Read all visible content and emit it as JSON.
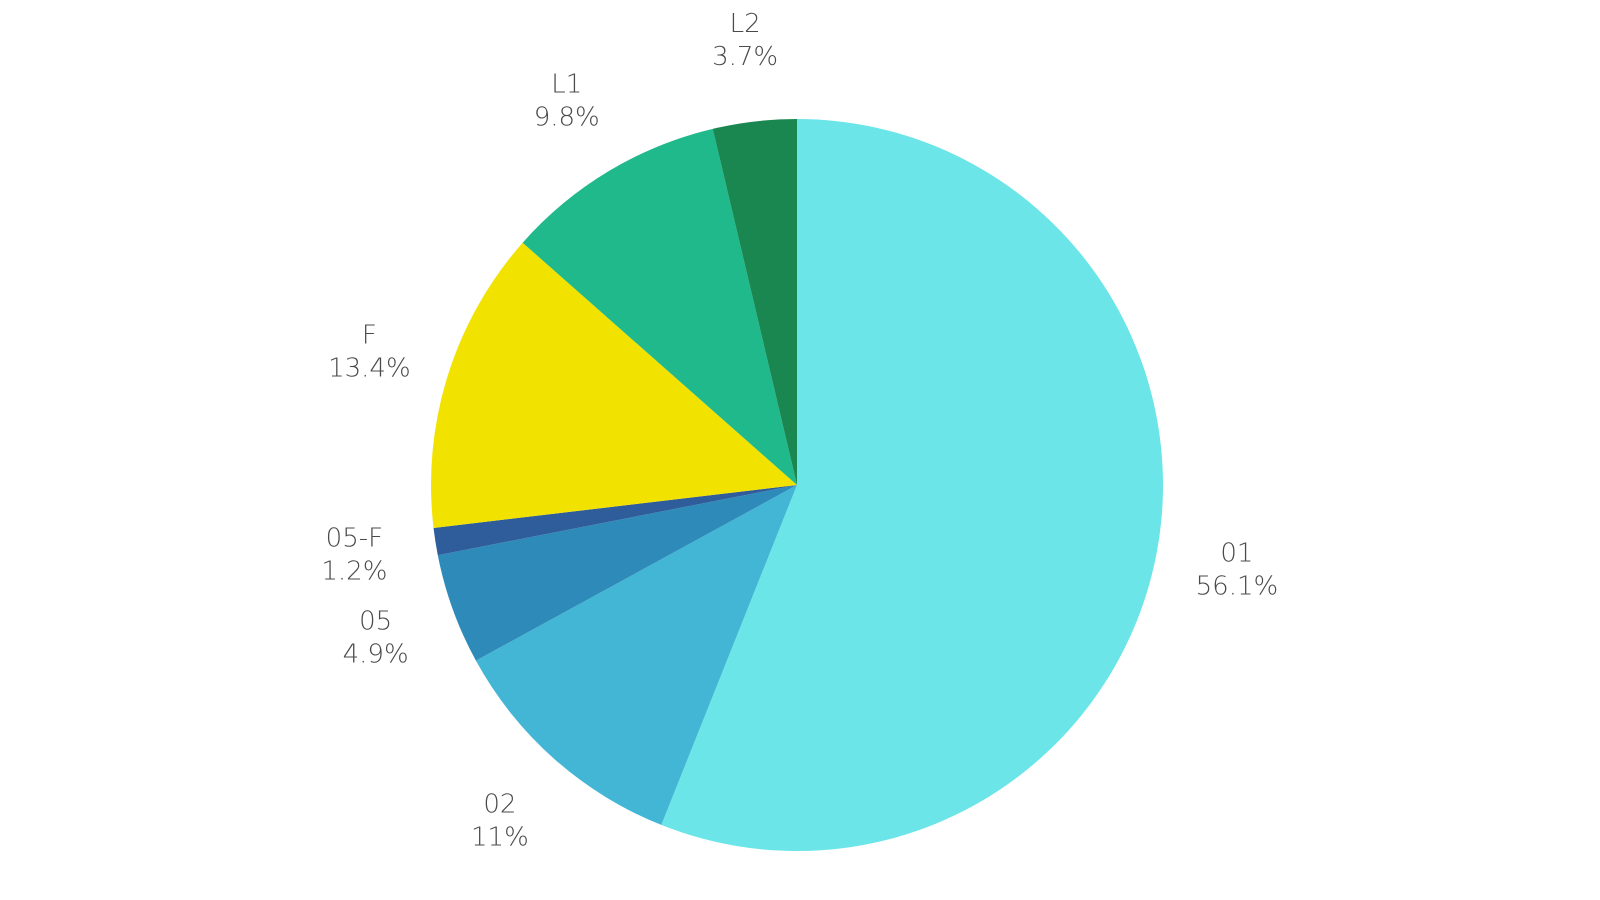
{
  "chart_data": {
    "type": "pie",
    "start_angle_deg": 0,
    "direction": "clockwise",
    "categories": [
      "01",
      "02",
      "05",
      "05-F",
      "F",
      "L1",
      "L2"
    ],
    "values": [
      56.1,
      11,
      4.9,
      1.2,
      13.4,
      9.8,
      3.7
    ],
    "value_labels": [
      "56.1%",
      "11%",
      "4.9%",
      "1.2%",
      "13.4%",
      "9.8%",
      "3.7%"
    ],
    "colors": [
      "#6be5e8",
      "#43b6d5",
      "#2e8ab8",
      "#2f5d9b",
      "#f2e200",
      "#1fb98c",
      "#1a8750"
    ],
    "legend": "none"
  }
}
